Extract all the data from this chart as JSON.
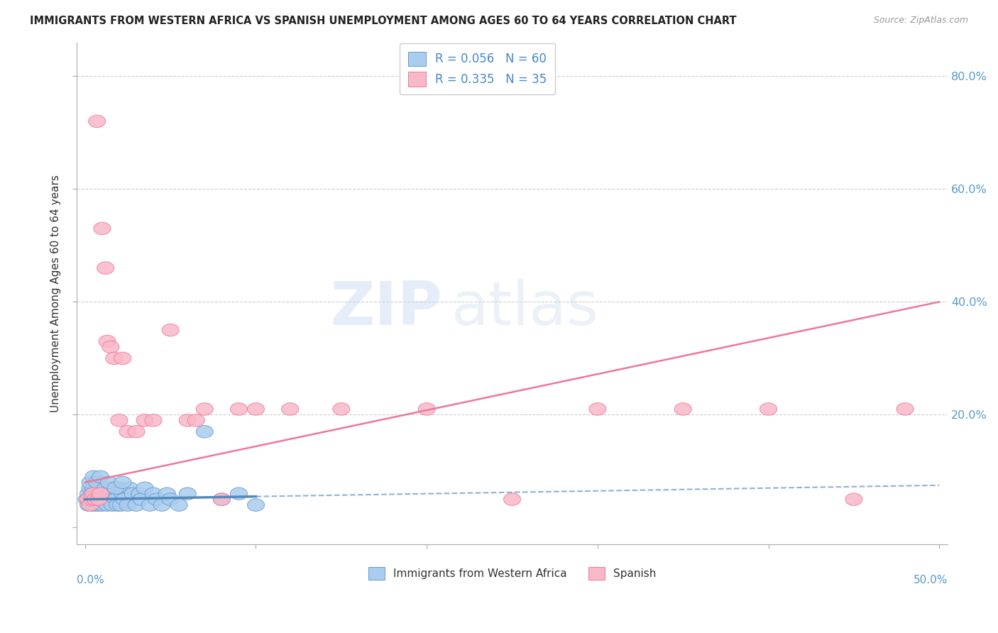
{
  "title": "IMMIGRANTS FROM WESTERN AFRICA VS SPANISH UNEMPLOYMENT AMONG AGES 60 TO 64 YEARS CORRELATION CHART",
  "source": "Source: ZipAtlas.com",
  "ylabel": "Unemployment Among Ages 60 to 64 years",
  "yticks": [
    0.0,
    0.2,
    0.4,
    0.6,
    0.8
  ],
  "ytick_labels": [
    "",
    "20.0%",
    "40.0%",
    "60.0%",
    "80.0%"
  ],
  "xticks": [
    0.0,
    0.1,
    0.2,
    0.3,
    0.4,
    0.5
  ],
  "xlim": [
    -0.005,
    0.505
  ],
  "ylim": [
    -0.03,
    0.86
  ],
  "legend_r_labels": [
    "R = 0.056   N = 60",
    "R = 0.335   N = 35"
  ],
  "legend_series_labels": [
    "Immigrants from Western Africa",
    "Spanish"
  ],
  "blue_color": "#aaccee",
  "blue_edge": "#6699cc",
  "blue_trend": "#5588bb",
  "pink_color": "#f8b8c8",
  "pink_edge": "#ee7799",
  "pink_trend": "#ee7799",
  "blue_x": [
    0.001,
    0.002,
    0.002,
    0.003,
    0.003,
    0.004,
    0.004,
    0.005,
    0.005,
    0.006,
    0.006,
    0.007,
    0.007,
    0.008,
    0.008,
    0.009,
    0.009,
    0.01,
    0.01,
    0.011,
    0.012,
    0.013,
    0.014,
    0.015,
    0.015,
    0.016,
    0.017,
    0.018,
    0.019,
    0.02,
    0.021,
    0.022,
    0.023,
    0.025,
    0.026,
    0.028,
    0.03,
    0.032,
    0.033,
    0.035,
    0.038,
    0.04,
    0.042,
    0.045,
    0.048,
    0.05,
    0.055,
    0.06,
    0.07,
    0.08,
    0.09,
    0.1,
    0.003,
    0.005,
    0.007,
    0.009,
    0.012,
    0.014,
    0.018,
    0.022
  ],
  "blue_y": [
    0.05,
    0.04,
    0.06,
    0.05,
    0.07,
    0.04,
    0.06,
    0.05,
    0.07,
    0.04,
    0.06,
    0.05,
    0.07,
    0.04,
    0.06,
    0.05,
    0.07,
    0.04,
    0.06,
    0.05,
    0.07,
    0.04,
    0.06,
    0.05,
    0.07,
    0.04,
    0.06,
    0.05,
    0.04,
    0.07,
    0.04,
    0.06,
    0.05,
    0.04,
    0.07,
    0.06,
    0.04,
    0.06,
    0.05,
    0.07,
    0.04,
    0.06,
    0.05,
    0.04,
    0.06,
    0.05,
    0.04,
    0.06,
    0.17,
    0.05,
    0.06,
    0.04,
    0.08,
    0.09,
    0.08,
    0.09,
    0.07,
    0.08,
    0.07,
    0.08
  ],
  "pink_x": [
    0.002,
    0.003,
    0.004,
    0.005,
    0.006,
    0.007,
    0.008,
    0.009,
    0.01,
    0.012,
    0.013,
    0.015,
    0.017,
    0.02,
    0.022,
    0.025,
    0.03,
    0.035,
    0.04,
    0.05,
    0.06,
    0.065,
    0.07,
    0.08,
    0.09,
    0.1,
    0.12,
    0.15,
    0.2,
    0.25,
    0.3,
    0.35,
    0.4,
    0.45,
    0.48
  ],
  "pink_y": [
    0.05,
    0.04,
    0.05,
    0.06,
    0.05,
    0.72,
    0.05,
    0.06,
    0.53,
    0.46,
    0.33,
    0.32,
    0.3,
    0.19,
    0.3,
    0.17,
    0.17,
    0.19,
    0.19,
    0.35,
    0.19,
    0.19,
    0.21,
    0.05,
    0.21,
    0.21,
    0.21,
    0.21,
    0.21,
    0.05,
    0.21,
    0.21,
    0.21,
    0.05,
    0.21
  ],
  "pink_trend_x0": 0.0,
  "pink_trend_y0": 0.08,
  "pink_trend_x1": 0.5,
  "pink_trend_y1": 0.4,
  "blue_trend_solid_x0": 0.0,
  "blue_trend_solid_y0": 0.05,
  "blue_trend_solid_x1": 0.1,
  "blue_trend_solid_y1": 0.055,
  "blue_trend_dash_x0": 0.1,
  "blue_trend_dash_y0": 0.055,
  "blue_trend_dash_x1": 0.5,
  "blue_trend_dash_y1": 0.075
}
